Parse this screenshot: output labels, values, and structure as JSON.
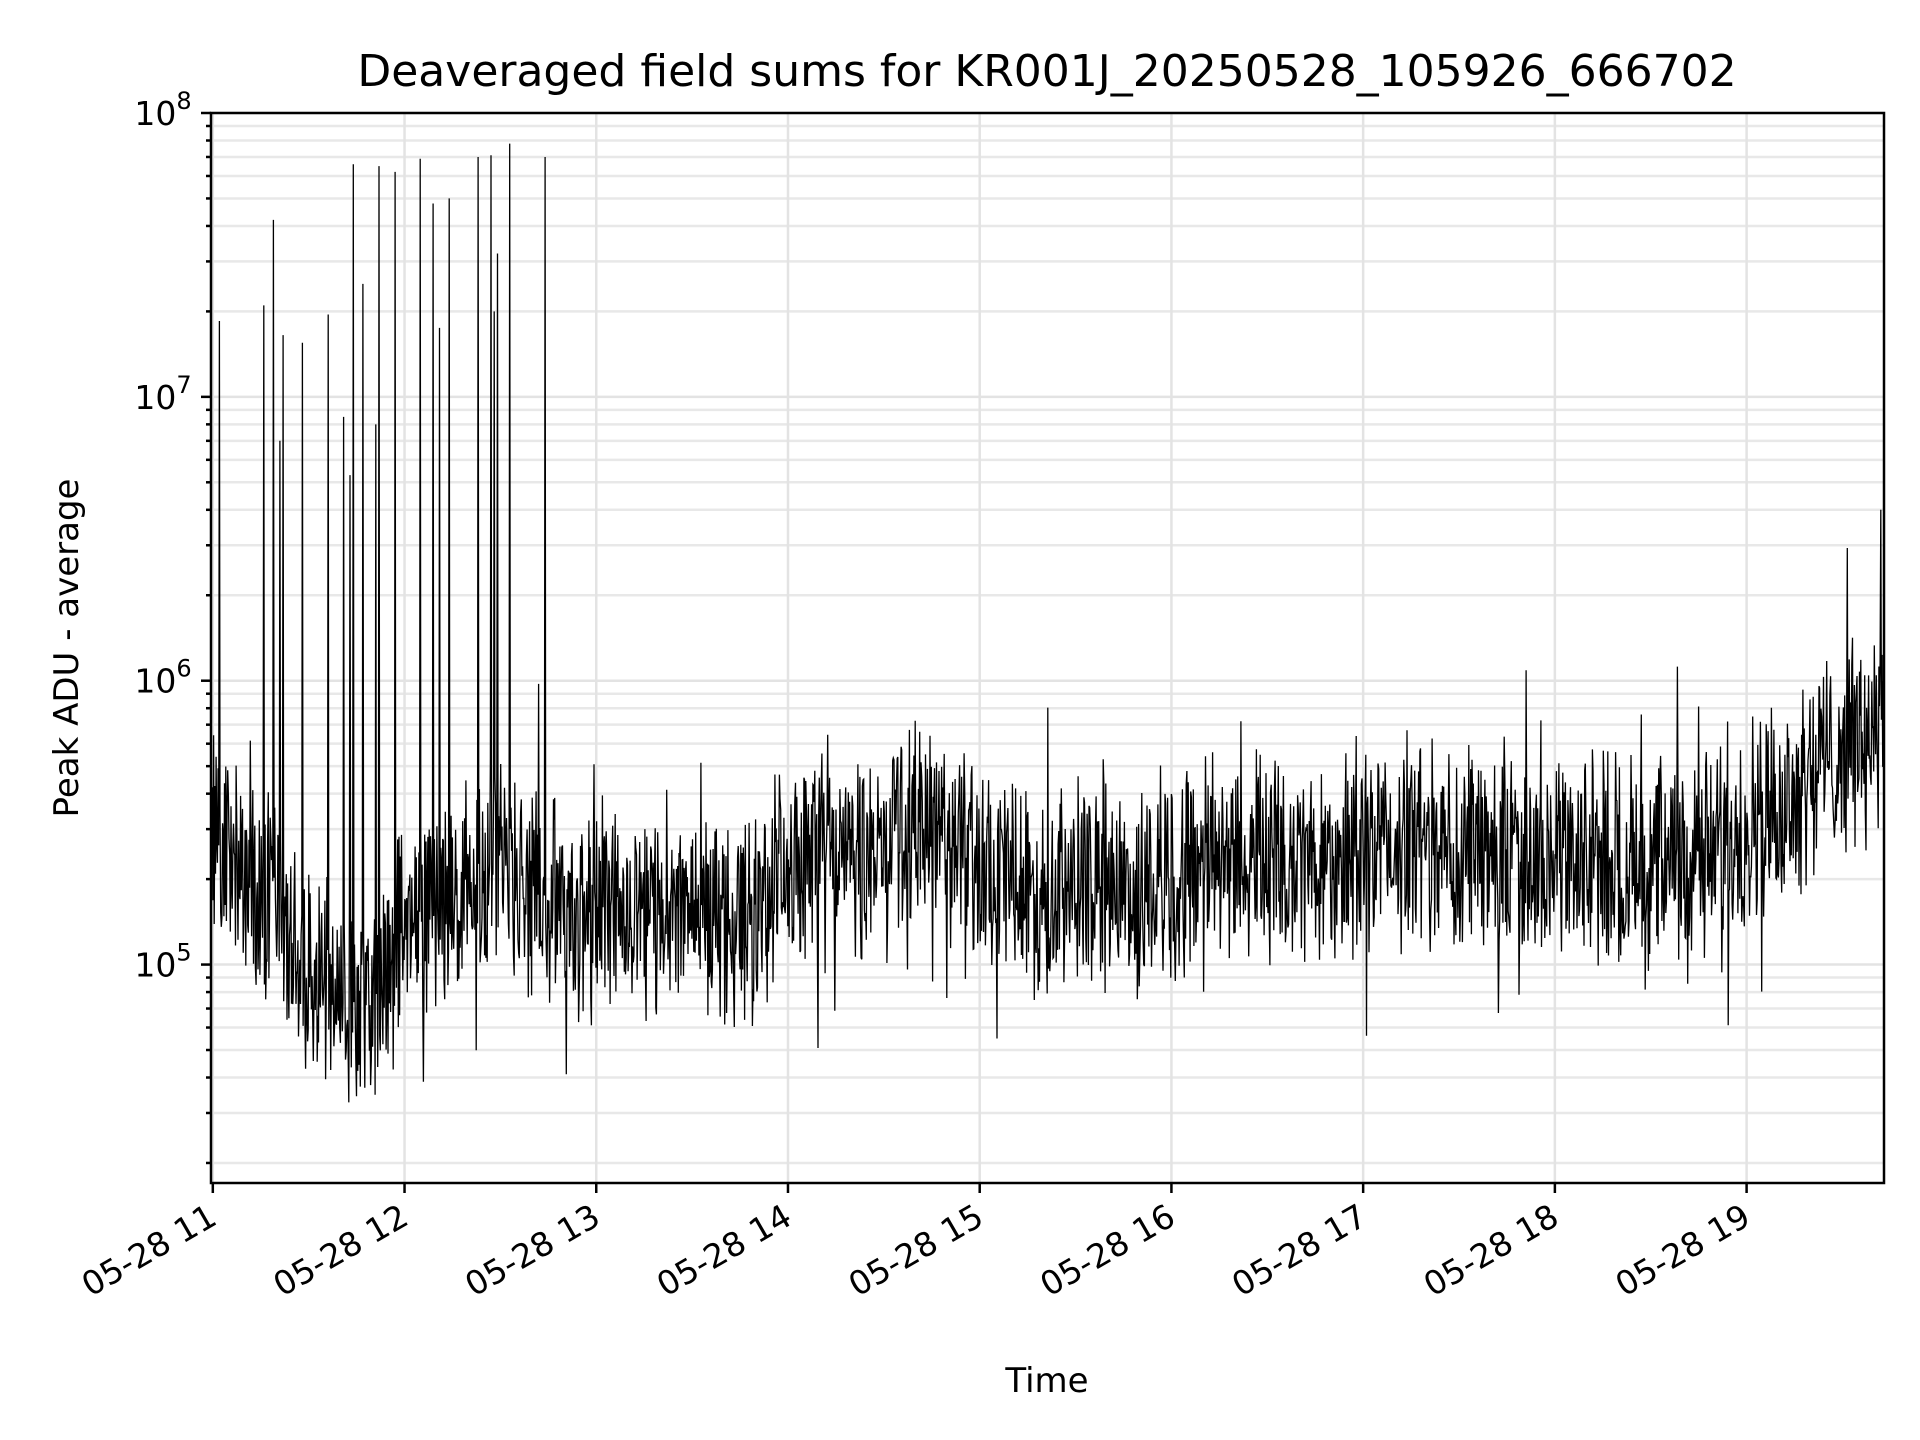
{
  "chart_data": {
    "type": "line",
    "title": "Deaveraged field sums for KR001J_20250528_105926_666702",
    "xlabel": "Time",
    "ylabel": "Peak ADU - average",
    "yscale": "log",
    "ylim": [
      17000,
      100000000
    ],
    "xlim": [
      "2025-05-28T10:59:26",
      "2025-05-28T19:43:00"
    ],
    "grid": true,
    "legend": "none",
    "line_color": "#000000",
    "x_ticks": [
      {
        "t": "2025-05-28T11:00",
        "label": "05-28 11"
      },
      {
        "t": "2025-05-28T12:00",
        "label": "05-28 12"
      },
      {
        "t": "2025-05-28T13:00",
        "label": "05-28 13"
      },
      {
        "t": "2025-05-28T14:00",
        "label": "05-28 14"
      },
      {
        "t": "2025-05-28T15:00",
        "label": "05-28 15"
      },
      {
        "t": "2025-05-28T16:00",
        "label": "05-28 16"
      },
      {
        "t": "2025-05-28T17:00",
        "label": "05-28 17"
      },
      {
        "t": "2025-05-28T18:00",
        "label": "05-28 18"
      },
      {
        "t": "2025-05-28T19:00",
        "label": "05-28 19"
      }
    ],
    "y_ticks": [
      {
        "value": 100000,
        "base": "10",
        "exp": "5"
      },
      {
        "value": 1000000,
        "base": "10",
        "exp": "6"
      },
      {
        "value": 10000000,
        "base": "10",
        "exp": "7"
      },
      {
        "value": 100000000,
        "base": "10",
        "exp": "8"
      }
    ],
    "series": [
      {
        "x": [
          "2025-05-28T11:00",
          "2025-05-28T11:10",
          "2025-05-28T11:20",
          "2025-05-28T11:30",
          "2025-05-28T11:40",
          "2025-05-28T11:50",
          "2025-05-28T12:00",
          "2025-05-28T12:10",
          "2025-05-28T12:20",
          "2025-05-28T12:30",
          "2025-05-28T12:40",
          "2025-05-28T12:50",
          "2025-05-28T13:00",
          "2025-05-28T13:10",
          "2025-05-28T13:20",
          "2025-05-28T13:30",
          "2025-05-28T13:40",
          "2025-05-28T13:50",
          "2025-05-28T14:00",
          "2025-05-28T14:10",
          "2025-05-28T14:20",
          "2025-05-28T14:30",
          "2025-05-28T14:40",
          "2025-05-28T14:50",
          "2025-05-28T15:00",
          "2025-05-28T15:10",
          "2025-05-28T15:20",
          "2025-05-28T15:30",
          "2025-05-28T15:40",
          "2025-05-28T15:50",
          "2025-05-28T16:00",
          "2025-05-28T16:10",
          "2025-05-28T16:20",
          "2025-05-28T16:30",
          "2025-05-28T16:40",
          "2025-05-28T16:50",
          "2025-05-28T17:00",
          "2025-05-28T17:10",
          "2025-05-28T17:20",
          "2025-05-28T17:30",
          "2025-05-28T17:40",
          "2025-05-28T17:50",
          "2025-05-28T18:00",
          "2025-05-28T18:10",
          "2025-05-28T18:20",
          "2025-05-28T18:30",
          "2025-05-28T18:40",
          "2025-05-28T18:50",
          "2025-05-28T19:00",
          "2025-05-28T19:10",
          "2025-05-28T19:20",
          "2025-05-28T19:30",
          "2025-05-28T19:42"
        ],
        "values": [
          300000,
          200000,
          150000,
          100000,
          90000,
          80000,
          130000,
          160000,
          200000,
          240000,
          180000,
          150000,
          170000,
          160000,
          150000,
          160000,
          140000,
          150000,
          210000,
          230000,
          240000,
          250000,
          320000,
          280000,
          240000,
          200000,
          180000,
          180000,
          190000,
          180000,
          210000,
          240000,
          250000,
          240000,
          230000,
          230000,
          250000,
          260000,
          270000,
          260000,
          250000,
          250000,
          240000,
          240000,
          230000,
          230000,
          230000,
          250000,
          330000,
          350000,
          500000,
          560000,
          700000
        ]
      }
    ],
    "spikes": [
      {
        "t": "2025-05-28T11:02",
        "value": 18500000
      },
      {
        "t": "2025-05-28T11:16",
        "value": 21000000
      },
      {
        "t": "2025-05-28T11:19",
        "value": 42000000
      },
      {
        "t": "2025-05-28T11:21",
        "value": 7000000
      },
      {
        "t": "2025-05-28T11:22",
        "value": 16500000
      },
      {
        "t": "2025-05-28T11:28",
        "value": 15500000
      },
      {
        "t": "2025-05-28T11:36",
        "value": 19500000
      },
      {
        "t": "2025-05-28T11:41",
        "value": 8500000
      },
      {
        "t": "2025-05-28T11:43",
        "value": 5300000
      },
      {
        "t": "2025-05-28T11:44",
        "value": 66000000
      },
      {
        "t": "2025-05-28T11:47",
        "value": 25000000
      },
      {
        "t": "2025-05-28T11:51",
        "value": 8000000
      },
      {
        "t": "2025-05-28T11:52",
        "value": 65000000
      },
      {
        "t": "2025-05-28T11:57",
        "value": 62000000
      },
      {
        "t": "2025-05-28T12:05",
        "value": 69000000
      },
      {
        "t": "2025-05-28T12:09",
        "value": 48000000
      },
      {
        "t": "2025-05-28T12:11",
        "value": 17500000
      },
      {
        "t": "2025-05-28T12:14",
        "value": 50000000
      },
      {
        "t": "2025-05-28T12:23",
        "value": 70000000
      },
      {
        "t": "2025-05-28T12:27",
        "value": 71000000
      },
      {
        "t": "2025-05-28T12:28",
        "value": 20000000
      },
      {
        "t": "2025-05-28T12:29",
        "value": 32000000
      },
      {
        "t": "2025-05-28T12:33",
        "value": 78000000
      },
      {
        "t": "2025-05-28T12:44",
        "value": 70000000
      },
      {
        "t": "2025-05-28T19:42",
        "value": 4000000
      }
    ]
  }
}
